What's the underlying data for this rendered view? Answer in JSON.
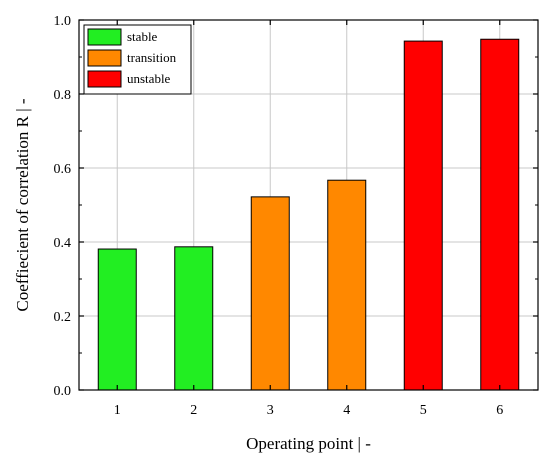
{
  "chart_data": {
    "type": "bar",
    "categories": [
      "1",
      "2",
      "3",
      "4",
      "5",
      "6"
    ],
    "values": [
      0.381,
      0.387,
      0.522,
      0.567,
      0.943,
      0.948
    ],
    "bar_states": [
      "stable",
      "stable",
      "transition",
      "transition",
      "unstable",
      "unstable"
    ],
    "legend": [
      {
        "label": "stable",
        "color": "#22ee22"
      },
      {
        "label": "transition",
        "color": "#ff8800"
      },
      {
        "label": "unstable",
        "color": "#ff0000"
      }
    ],
    "legend_position": "top-left",
    "xlabel": "Operating point  |  -",
    "ylabel": "Coeffiecient of correlation R  |  -",
    "ylim": [
      0.0,
      1.0
    ],
    "yticks": [
      "0.0",
      "0.2",
      "0.4",
      "0.6",
      "0.8",
      "1.0"
    ],
    "grid": true
  }
}
